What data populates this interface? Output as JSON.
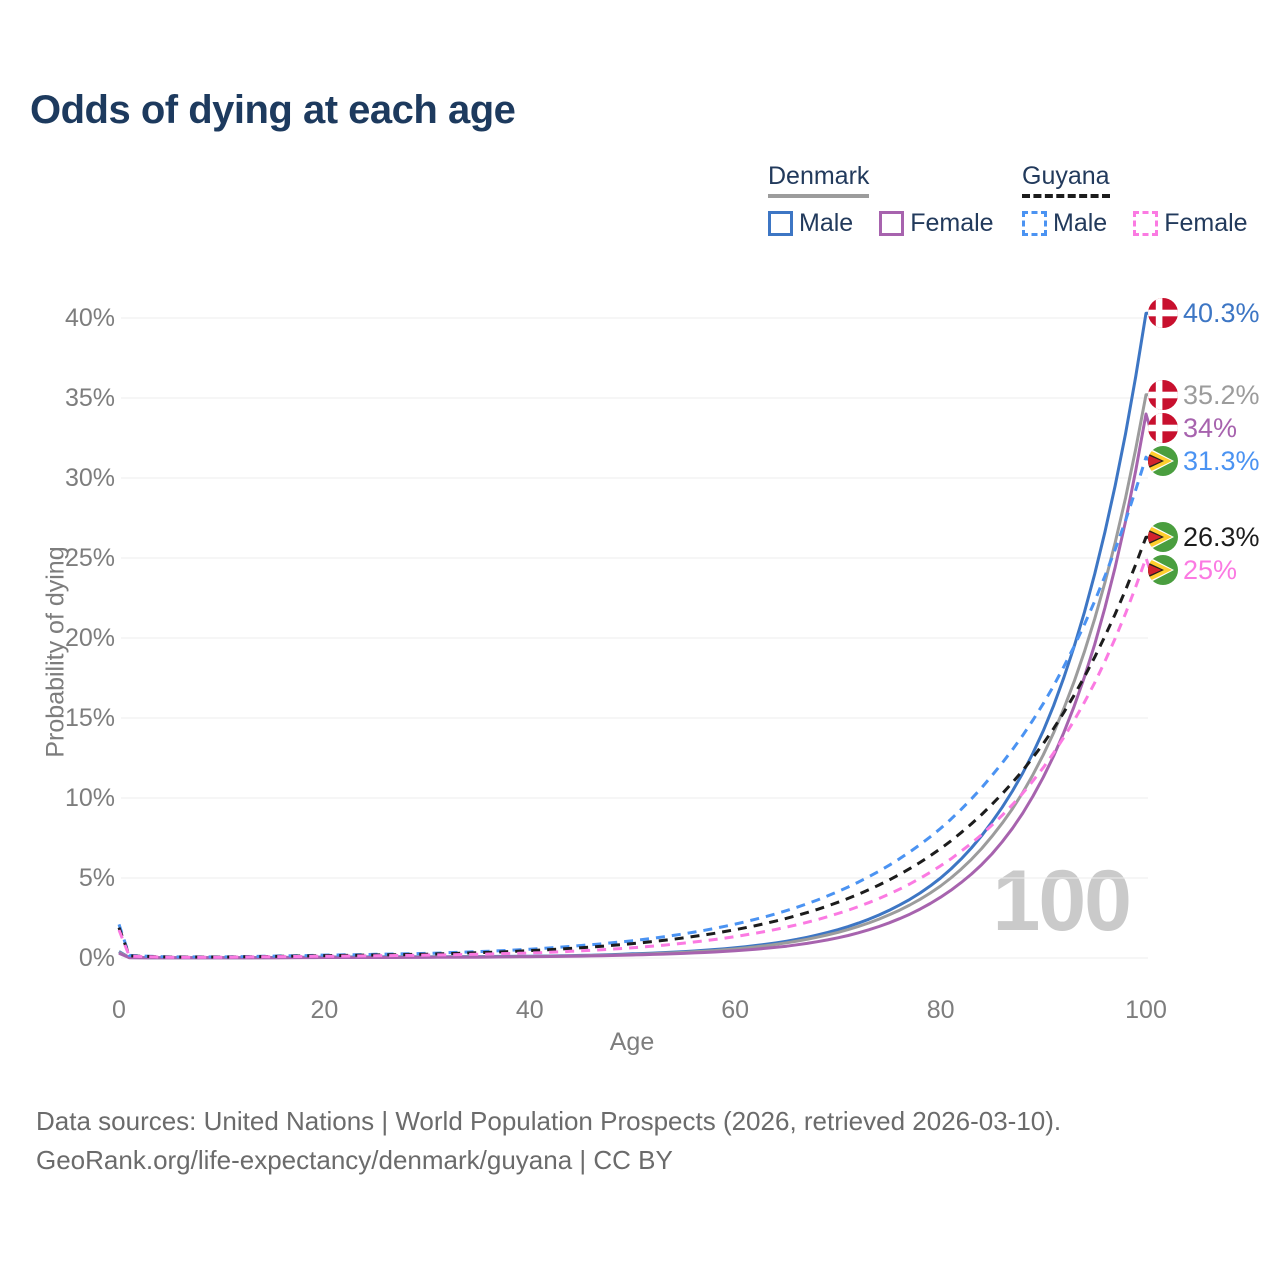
{
  "title": "Odds of dying at each age",
  "legend": {
    "denmark": {
      "label": "Denmark",
      "male": "Male",
      "female": "Female"
    },
    "guyana": {
      "label": "Guyana",
      "male": "Male",
      "female": "Female"
    }
  },
  "axes": {
    "y_title": "Probability of dying",
    "x_title": "Age",
    "y_ticks": [
      {
        "label": "0%",
        "value": 0
      },
      {
        "label": "5%",
        "value": 5
      },
      {
        "label": "10%",
        "value": 10
      },
      {
        "label": "15%",
        "value": 15
      },
      {
        "label": "20%",
        "value": 20
      },
      {
        "label": "25%",
        "value": 25
      },
      {
        "label": "30%",
        "value": 30
      },
      {
        "label": "35%",
        "value": 35
      },
      {
        "label": "40%",
        "value": 40
      }
    ],
    "x_ticks": [
      {
        "label": "0",
        "value": 0
      },
      {
        "label": "20",
        "value": 20
      },
      {
        "label": "40",
        "value": 40
      },
      {
        "label": "60",
        "value": 60
      },
      {
        "label": "80",
        "value": 80
      },
      {
        "label": "100",
        "value": 100
      }
    ]
  },
  "watermark": "100",
  "flags": {
    "denmark": {
      "red": "#c8102e",
      "white": "#ffffff"
    },
    "guyana": {
      "green": "#4a9e3f",
      "yellow": "#ffce2e",
      "red": "#d2222d",
      "black": "#26201d",
      "white": "#ffffff"
    }
  },
  "chart_data": {
    "type": "line",
    "title": "Odds of dying at each age",
    "xlabel": "Age",
    "ylabel": "Probability of dying",
    "xlim": [
      0,
      100
    ],
    "ylim": [
      0,
      40
    ],
    "y_unit": "%",
    "grid": "horizontal gridlines every 5%",
    "legend_position": "top-right",
    "x_ages": [
      0,
      1,
      5,
      10,
      15,
      20,
      25,
      30,
      35,
      40,
      45,
      50,
      55,
      60,
      65,
      70,
      75,
      80,
      85,
      90,
      95,
      100
    ],
    "series": [
      {
        "id": "denmark-male",
        "name": "Denmark Male",
        "country": "Denmark",
        "sex": "Male",
        "dash": "solid",
        "color": "#3d76c4",
        "flag": "denmark",
        "end_label": "40.3%",
        "end_value": 40.3,
        "values": [
          0.4,
          0.03,
          0.01,
          0.01,
          0.03,
          0.06,
          0.07,
          0.08,
          0.09,
          0.11,
          0.16,
          0.26,
          0.4,
          0.64,
          1.05,
          1.77,
          2.98,
          5.0,
          8.5,
          14.2,
          24.0,
          40.3
        ]
      },
      {
        "id": "denmark-all",
        "name": "Denmark Both sexes",
        "country": "Denmark",
        "sex": "All",
        "dash": "solid",
        "color": "#9c9c9c",
        "flag": "denmark",
        "end_label": "35.2%",
        "end_value": 35.2,
        "values": [
          0.35,
          0.03,
          0.01,
          0.01,
          0.02,
          0.04,
          0.05,
          0.06,
          0.07,
          0.09,
          0.14,
          0.22,
          0.35,
          0.56,
          0.95,
          1.6,
          2.7,
          4.5,
          7.6,
          12.7,
          21.2,
          35.2
        ]
      },
      {
        "id": "denmark-female",
        "name": "Denmark Female",
        "country": "Denmark",
        "sex": "Female",
        "dash": "solid",
        "color": "#a763ae",
        "flag": "denmark",
        "end_label": "34%",
        "end_value": 34.0,
        "values": [
          0.3,
          0.02,
          0.01,
          0.01,
          0.02,
          0.03,
          0.03,
          0.04,
          0.05,
          0.08,
          0.12,
          0.19,
          0.29,
          0.45,
          0.74,
          1.26,
          2.2,
          3.8,
          6.5,
          11.3,
          19.6,
          34.0
        ]
      },
      {
        "id": "guyana-male",
        "name": "Guyana Male",
        "country": "Guyana",
        "sex": "Male",
        "dash": "dashed",
        "color": "#4b93f2",
        "flag": "guyana",
        "end_label": "31.3%",
        "end_value": 31.3,
        "values": [
          2.1,
          0.16,
          0.07,
          0.07,
          0.12,
          0.18,
          0.23,
          0.29,
          0.4,
          0.55,
          0.78,
          1.08,
          1.51,
          2.12,
          2.96,
          4.15,
          5.8,
          8.1,
          11.4,
          15.9,
          22.3,
          31.3
        ]
      },
      {
        "id": "guyana-all",
        "name": "Guyana Both sexes",
        "country": "Guyana",
        "sex": "All",
        "dash": "dashed",
        "color": "#1c1c1c",
        "flag": "guyana",
        "end_label": "26.3%",
        "end_value": 26.3,
        "values": [
          1.9,
          0.14,
          0.06,
          0.06,
          0.1,
          0.15,
          0.19,
          0.24,
          0.33,
          0.46,
          0.64,
          0.9,
          1.26,
          1.77,
          2.48,
          3.48,
          4.88,
          6.84,
          9.6,
          13.4,
          18.8,
          26.3
        ]
      },
      {
        "id": "guyana-female",
        "name": "Guyana Female",
        "country": "Guyana",
        "sex": "Female",
        "dash": "dashed",
        "color": "#fb7ae2",
        "flag": "guyana",
        "end_label": "25%",
        "end_value": 25.0,
        "values": [
          1.75,
          0.12,
          0.05,
          0.05,
          0.08,
          0.11,
          0.14,
          0.18,
          0.24,
          0.31,
          0.45,
          0.64,
          0.93,
          1.34,
          1.93,
          2.78,
          4.0,
          5.76,
          8.3,
          11.9,
          17.2,
          25.0
        ]
      }
    ]
  },
  "source": {
    "line1": "Data sources: United Nations | World Population Prospects (2026, retrieved 2026-03-10).",
    "line2": "GeoRank.org/life-expectancy/denmark/guyana | CC BY"
  }
}
